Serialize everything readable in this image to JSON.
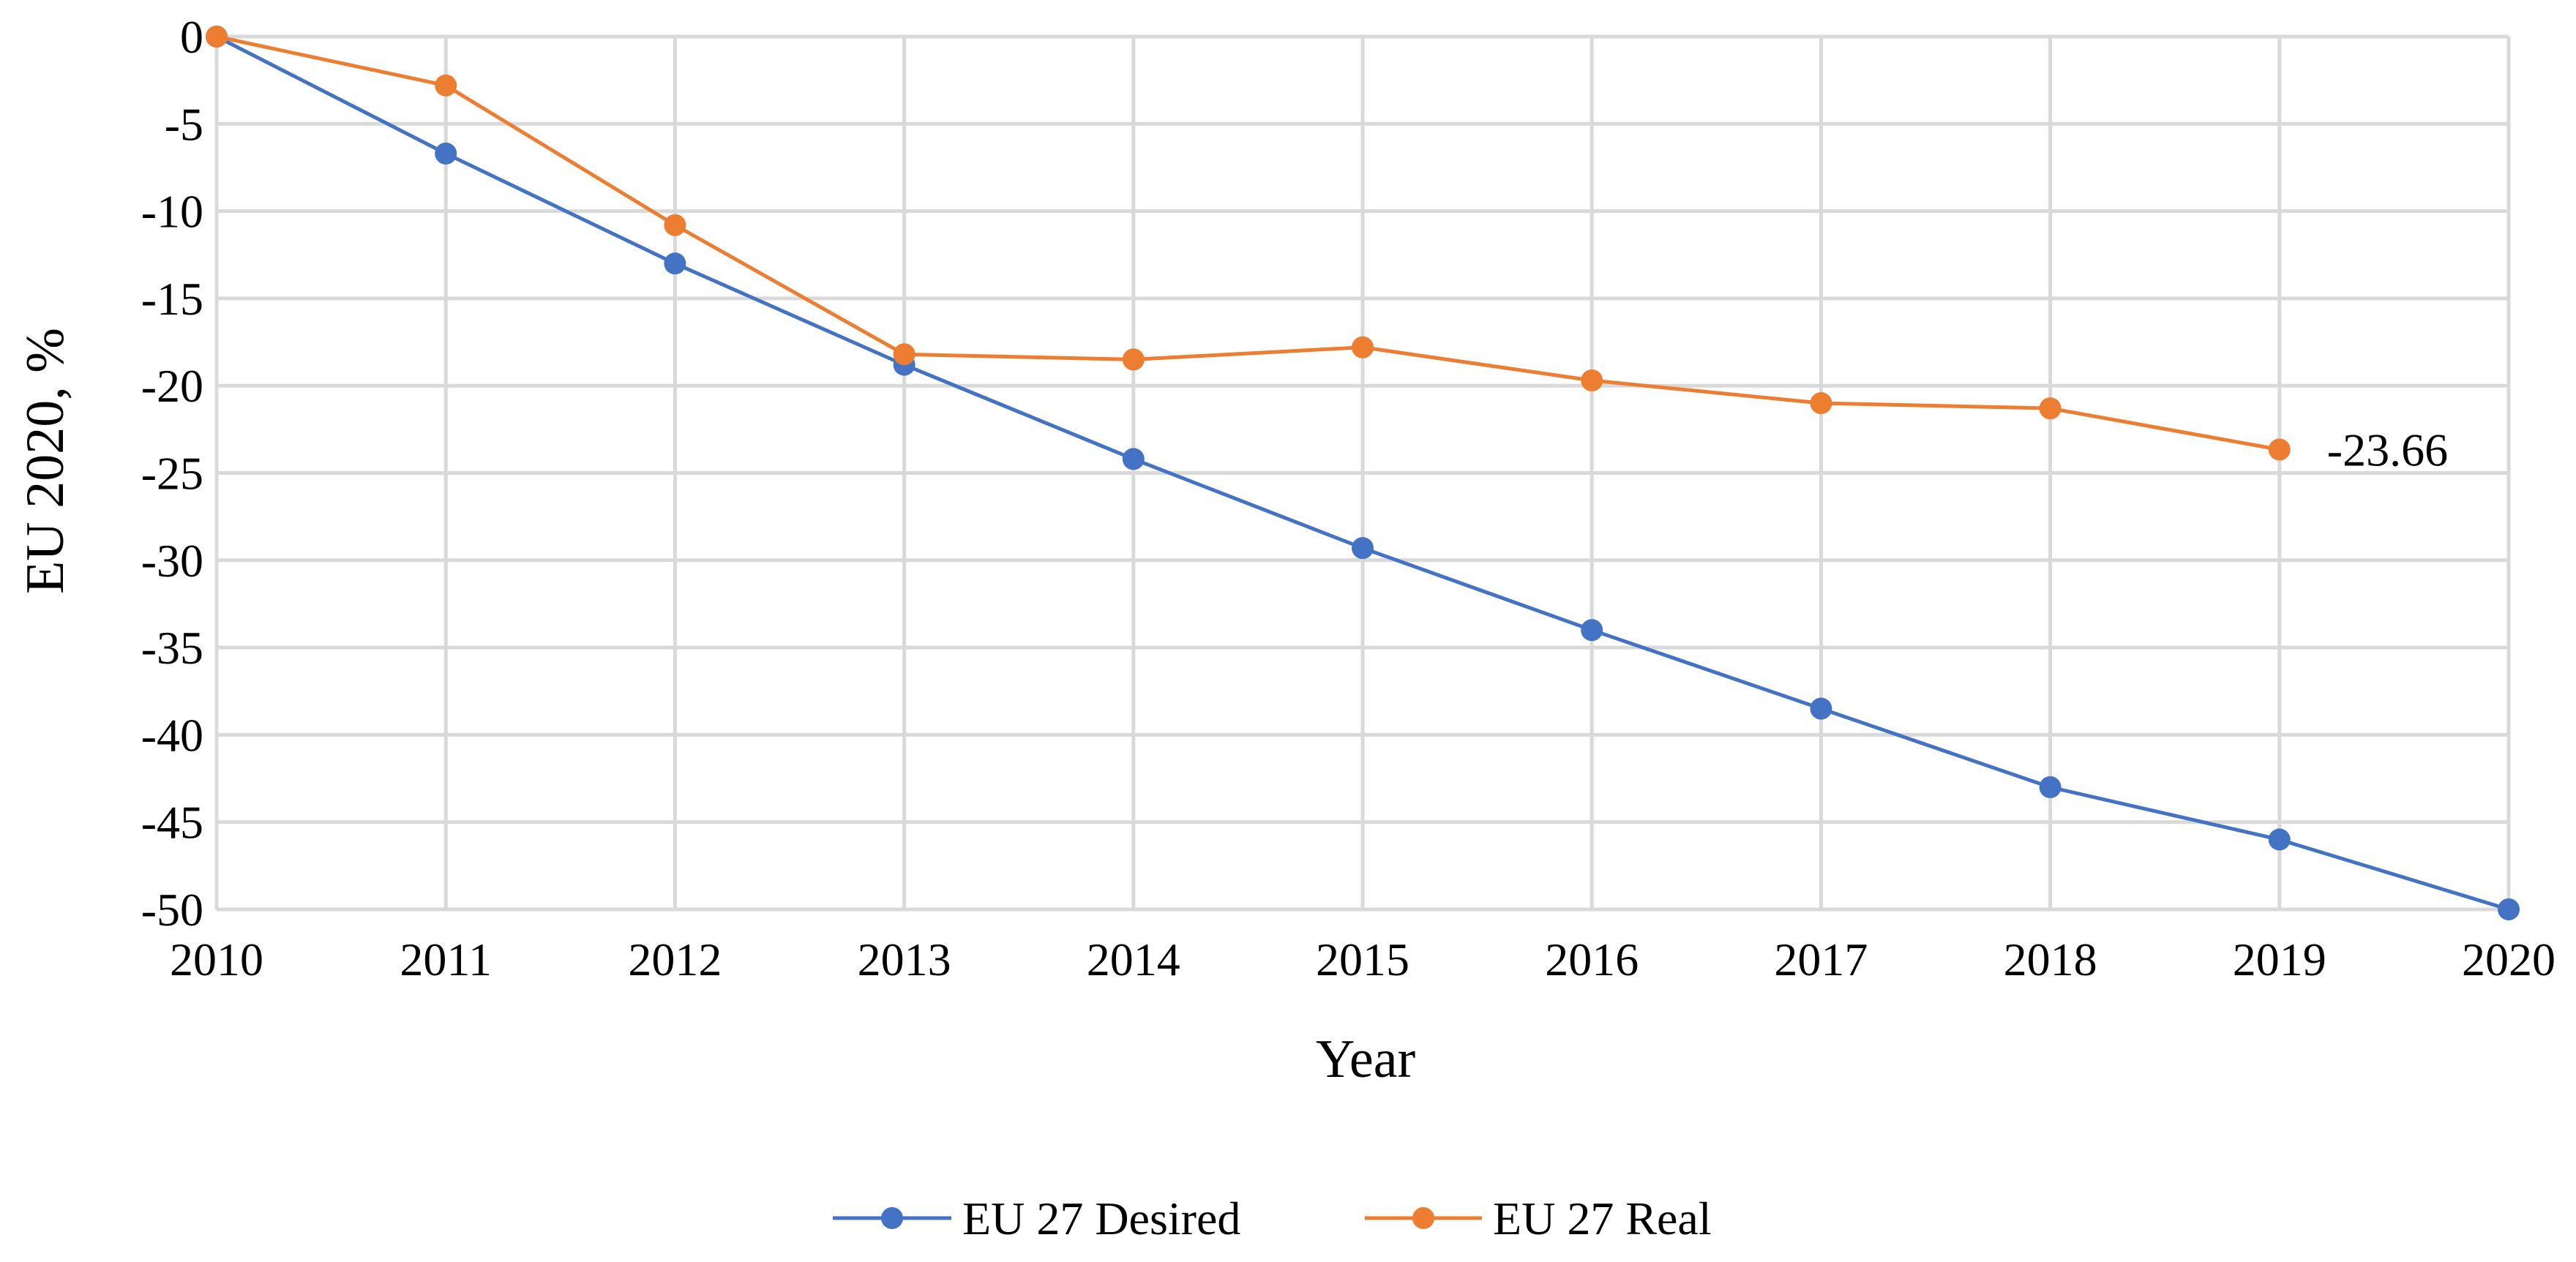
{
  "chart_data": {
    "type": "line",
    "title": "",
    "xlabel": "Year",
    "ylabel": "EU 2020, %",
    "x": [
      "2010",
      "2011",
      "2012",
      "2013",
      "2014",
      "2015",
      "2016",
      "2017",
      "2018",
      "2019",
      "2020"
    ],
    "yticks": [
      "0",
      "-5",
      "-10",
      "-15",
      "-20",
      "-25",
      "-30",
      "-35",
      "-40",
      "-45",
      "-50"
    ],
    "ylim": [
      -50,
      0
    ],
    "grid": true,
    "legend_position": "bottom",
    "series": [
      {
        "name": "EU 27 Desired",
        "color": "#4472C4",
        "values": [
          0,
          -6.7,
          -13.0,
          -18.8,
          -24.2,
          -29.3,
          -34.0,
          -38.5,
          -43.0,
          -46.0,
          -50.0
        ]
      },
      {
        "name": "EU 27 Real",
        "color": "#ED7D31",
        "values": [
          0,
          -2.8,
          -10.8,
          -18.2,
          -18.5,
          -17.8,
          -19.7,
          -21.0,
          -21.3,
          -23.66,
          null
        ]
      }
    ],
    "annotations": [
      {
        "series": 1,
        "index": 9,
        "text": "-23.66"
      }
    ]
  }
}
